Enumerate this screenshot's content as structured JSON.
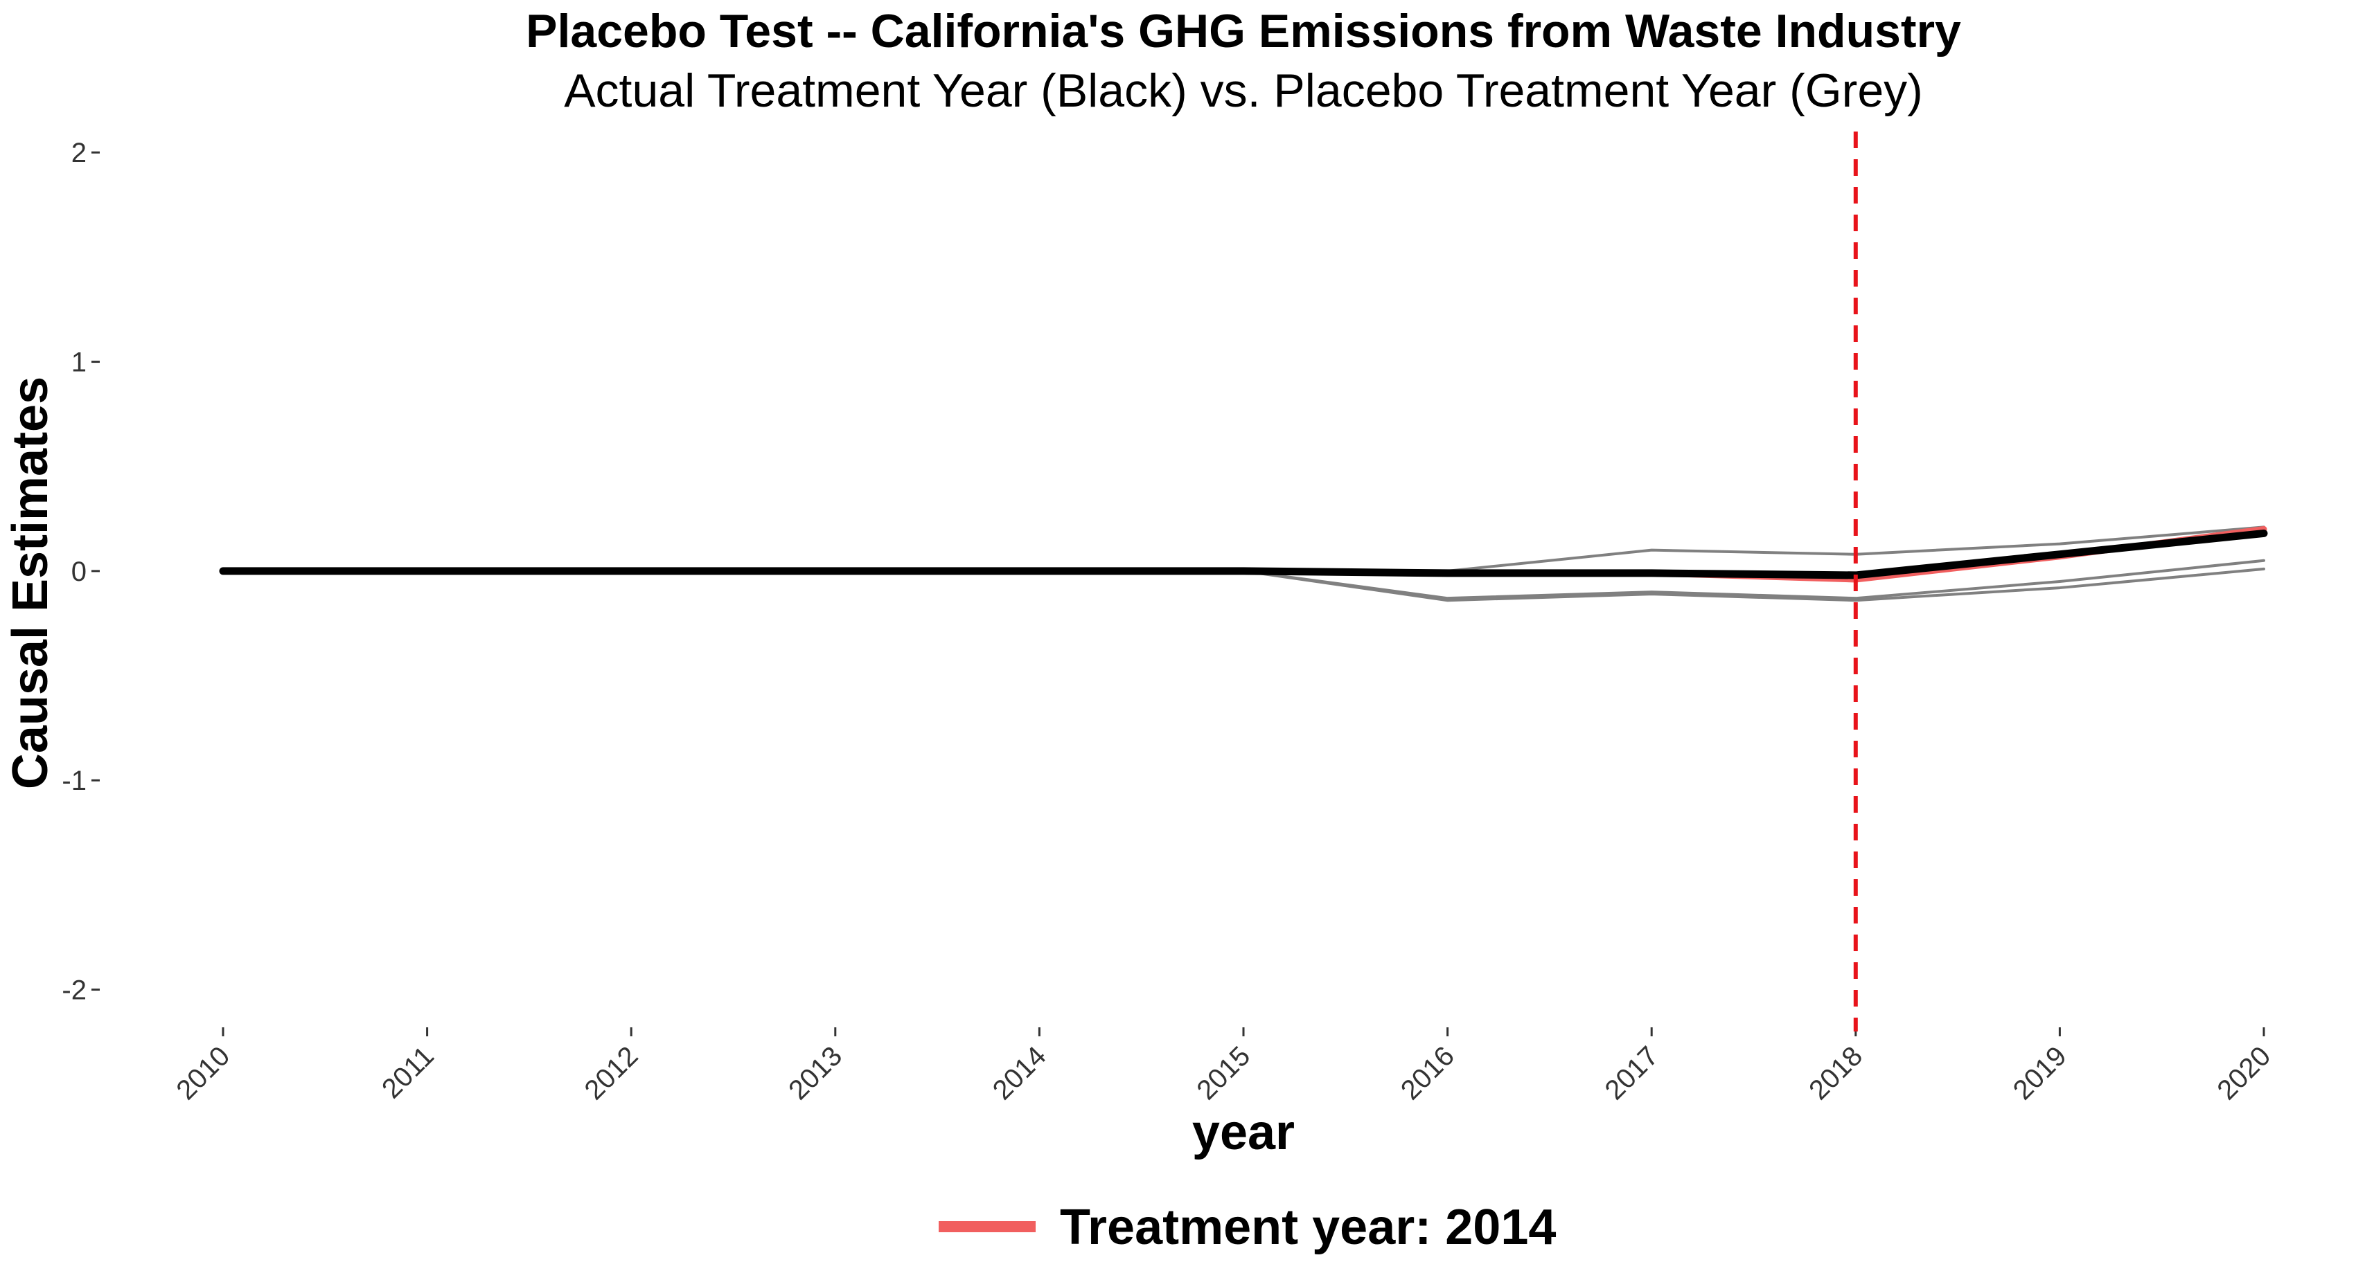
{
  "chart_data": {
    "type": "line",
    "title": "Placebo Test -- California's GHG Emissions from Waste Industry",
    "subtitle": "Actual Treatment Year (Black) vs. Placebo Treatment Year (Grey)",
    "xlabel": "year",
    "ylabel": "Causal Estimates",
    "x": [
      2010,
      2011,
      2012,
      2013,
      2014,
      2015,
      2016,
      2017,
      2018,
      2019,
      2020
    ],
    "ylim": [
      -2.2,
      2.1
    ],
    "yticks": [
      -2,
      -1,
      0,
      1,
      2
    ],
    "ytick_labels": [
      "-2",
      "-1",
      "0",
      "1",
      "2"
    ],
    "grid": false,
    "vline": {
      "x": 2018,
      "color": "#e8131a",
      "style": "dashed"
    },
    "series": [
      {
        "role": "placebo",
        "color": "#808080",
        "values": [
          0,
          0,
          0,
          0,
          0,
          0,
          -0.14,
          -0.11,
          -0.14,
          -0.08,
          0.01
        ]
      },
      {
        "role": "placebo",
        "color": "#808080",
        "values": [
          0,
          0,
          0,
          0,
          0,
          0,
          -0.13,
          -0.1,
          -0.13,
          -0.05,
          0.05
        ]
      },
      {
        "role": "placebo",
        "color": "#808080",
        "values": [
          0,
          0,
          0,
          0,
          0,
          0,
          0.0,
          0.1,
          0.08,
          0.13,
          0.21
        ]
      },
      {
        "role": "highlight",
        "name": "Treatment year: 2014",
        "color": "#f15f5f",
        "values": [
          0,
          0,
          0,
          0,
          0,
          0,
          -0.01,
          -0.01,
          -0.04,
          0.07,
          0.2
        ]
      },
      {
        "role": "actual",
        "color": "#000000",
        "values": [
          0,
          0,
          0,
          0,
          0,
          0,
          -0.01,
          -0.01,
          -0.02,
          0.08,
          0.18
        ]
      }
    ],
    "legend": {
      "position": "bottom",
      "entries": [
        {
          "label": "Treatment year: 2014",
          "color": "#f15f5f"
        }
      ]
    }
  }
}
